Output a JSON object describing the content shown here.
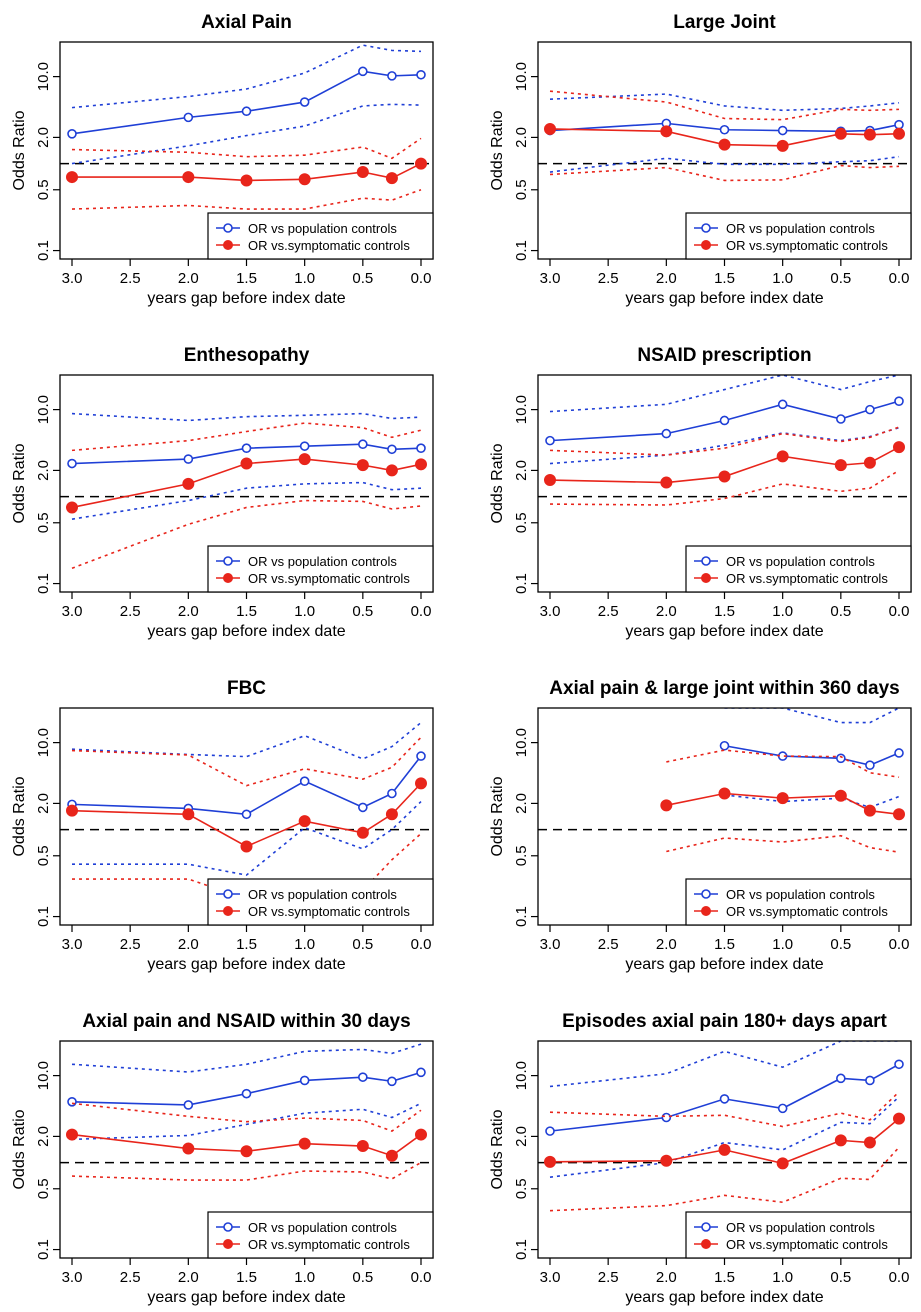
{
  "figure": {
    "xlabel": "years gap before index date",
    "ylabel": "Odds Ratio",
    "x_ticks": [
      3.0,
      2.5,
      2.0,
      1.5,
      1.0,
      0.5,
      0.0
    ],
    "x_tick_labels": [
      "3.0",
      "2.5",
      "2.0",
      "1.5",
      "1.0",
      "0.5",
      "0.0"
    ],
    "y_ticks": [
      0.1,
      0.5,
      2.0,
      10.0
    ],
    "y_tick_labels": [
      "0.1",
      "0.5",
      "2.0",
      "10.0"
    ],
    "legend": {
      "pop_label": "OR vs population controls",
      "sym_label": "OR vs.symptomatic controls"
    },
    "colors": {
      "pop": "#1f3fd6",
      "sym": "#e8251b",
      "reference": "#000000"
    }
  },
  "chart_data": [
    {
      "type": "line",
      "title": "Axial Pain",
      "xlabel": "years gap before index date",
      "ylabel": "Odds Ratio",
      "y_scale": "log",
      "xlim": [
        3.0,
        0.0
      ],
      "ylim": [
        0.08,
        25
      ],
      "reference_line": 1.0,
      "legend_position": "bottom-right",
      "series": [
        {
          "name": "OR vs population controls",
          "marker": "open-circle",
          "x": [
            3.0,
            2.0,
            1.5,
            1.0,
            0.5,
            0.25,
            0.0
          ],
          "y": [
            2.2,
            3.4,
            4.0,
            5.1,
            11.5,
            10.2,
            10.5
          ],
          "lower": [
            1.0,
            1.6,
            2.1,
            2.7,
            4.6,
            4.8,
            4.7
          ],
          "upper": [
            4.4,
            5.9,
            7.2,
            11.0,
            23.0,
            20.0,
            19.5
          ]
        },
        {
          "name": "OR vs.symptomatic controls",
          "marker": "filled-circle",
          "x": [
            3.0,
            2.0,
            1.5,
            1.0,
            0.5,
            0.25,
            0.0
          ],
          "y": [
            0.7,
            0.7,
            0.64,
            0.66,
            0.8,
            0.68,
            1.0
          ],
          "lower": [
            0.3,
            0.33,
            0.3,
            0.3,
            0.4,
            0.38,
            0.5
          ],
          "upper": [
            1.45,
            1.35,
            1.2,
            1.25,
            1.55,
            1.15,
            1.95
          ]
        }
      ]
    },
    {
      "type": "line",
      "title": "Large Joint",
      "xlabel": "years gap before index date",
      "ylabel": "Odds Ratio",
      "y_scale": "log",
      "xlim": [
        3.0,
        0.0
      ],
      "ylim": [
        0.08,
        25
      ],
      "reference_line": 1.0,
      "legend_position": "bottom-right",
      "series": [
        {
          "name": "OR vs population controls",
          "marker": "open-circle",
          "x": [
            3.0,
            2.0,
            1.5,
            1.0,
            0.5,
            0.25,
            0.0
          ],
          "y": [
            2.4,
            2.9,
            2.45,
            2.4,
            2.35,
            2.4,
            2.8
          ],
          "lower": [
            0.8,
            1.15,
            0.98,
            0.98,
            1.05,
            1.08,
            1.2
          ],
          "upper": [
            5.5,
            6.3,
            4.6,
            4.1,
            4.3,
            4.6,
            5.0
          ]
        },
        {
          "name": "OR vs.symptomatic controls",
          "marker": "filled-circle",
          "x": [
            3.0,
            2.0,
            1.5,
            1.0,
            0.5,
            0.25,
            0.0
          ],
          "y": [
            2.5,
            2.35,
            1.65,
            1.6,
            2.2,
            2.15,
            2.2
          ],
          "lower": [
            0.75,
            0.9,
            0.64,
            0.65,
            0.95,
            0.9,
            0.93
          ],
          "upper": [
            6.8,
            5.1,
            3.3,
            3.2,
            4.2,
            4.1,
            4.2
          ]
        }
      ]
    },
    {
      "type": "line",
      "title": "Enthesopathy",
      "xlabel": "years gap before index date",
      "ylabel": "Odds Ratio",
      "y_scale": "log",
      "xlim": [
        3.0,
        0.0
      ],
      "ylim": [
        0.08,
        25
      ],
      "reference_line": 1.0,
      "legend_position": "bottom-right",
      "series": [
        {
          "name": "OR vs population controls",
          "marker": "open-circle",
          "x": [
            3.0,
            2.0,
            1.5,
            1.0,
            0.5,
            0.25,
            0.0
          ],
          "y": [
            2.4,
            2.7,
            3.6,
            3.8,
            4.0,
            3.5,
            3.6
          ],
          "lower": [
            0.55,
            0.9,
            1.25,
            1.4,
            1.45,
            1.2,
            1.25
          ],
          "upper": [
            9.0,
            7.5,
            8.3,
            8.6,
            9.0,
            7.9,
            8.2
          ]
        },
        {
          "name": "OR vs.symptomatic controls",
          "marker": "filled-circle",
          "x": [
            3.0,
            2.0,
            1.5,
            1.0,
            0.5,
            0.25,
            0.0
          ],
          "y": [
            0.75,
            1.4,
            2.4,
            2.7,
            2.3,
            2.0,
            2.35
          ],
          "lower": [
            0.15,
            0.48,
            0.75,
            0.9,
            0.88,
            0.72,
            0.78
          ],
          "upper": [
            3.4,
            4.4,
            5.6,
            7.0,
            6.2,
            4.8,
            5.8
          ]
        }
      ]
    },
    {
      "type": "line",
      "title": "NSAID prescription",
      "xlabel": "years gap before index date",
      "ylabel": "Odds Ratio",
      "y_scale": "log",
      "xlim": [
        3.0,
        0.0
      ],
      "ylim": [
        0.08,
        25
      ],
      "reference_line": 1.0,
      "legend_position": "bottom-right",
      "series": [
        {
          "name": "OR vs population controls",
          "marker": "open-circle",
          "x": [
            3.0,
            2.0,
            1.5,
            1.0,
            0.5,
            0.25,
            0.0
          ],
          "y": [
            4.4,
            5.3,
            7.5,
            11.5,
            7.8,
            10.0,
            12.5
          ],
          "lower": [
            2.4,
            3.0,
            3.9,
            5.4,
            4.4,
            4.9,
            6.2
          ],
          "upper": [
            9.5,
            11.5,
            17.0,
            25.0,
            17.0,
            21.0,
            25.0
          ]
        },
        {
          "name": "OR vs.symptomatic controls",
          "marker": "filled-circle",
          "x": [
            3.0,
            2.0,
            1.5,
            1.0,
            0.5,
            0.25,
            0.0
          ],
          "y": [
            1.55,
            1.45,
            1.7,
            2.9,
            2.3,
            2.45,
            3.7
          ],
          "lower": [
            0.82,
            0.8,
            0.95,
            1.4,
            1.15,
            1.25,
            2.0
          ],
          "upper": [
            3.4,
            3.0,
            3.6,
            5.3,
            4.3,
            4.8,
            6.3
          ]
        }
      ]
    },
    {
      "type": "line",
      "title": "FBC",
      "xlabel": "years gap before index date",
      "ylabel": "Odds Ratio",
      "y_scale": "log",
      "xlim": [
        3.0,
        0.0
      ],
      "ylim": [
        0.08,
        25
      ],
      "reference_line": 1.0,
      "legend_position": "bottom-right",
      "series": [
        {
          "name": "OR vs population controls",
          "marker": "open-circle",
          "x": [
            3.0,
            2.0,
            1.5,
            1.0,
            0.5,
            0.25,
            0.0
          ],
          "y": [
            1.95,
            1.75,
            1.5,
            3.6,
            1.8,
            2.6,
            7.0
          ],
          "lower": [
            0.4,
            0.4,
            0.3,
            1.05,
            0.6,
            1.0,
            2.1
          ],
          "upper": [
            8.4,
            7.3,
            6.9,
            12.0,
            6.5,
            9.0,
            17.0
          ]
        },
        {
          "name": "OR vs.symptomatic controls",
          "marker": "filled-circle",
          "x": [
            3.0,
            2.0,
            1.5,
            1.0,
            0.5,
            0.25,
            0.0
          ],
          "y": [
            1.65,
            1.5,
            0.64,
            1.25,
            0.92,
            1.5,
            3.4
          ],
          "lower": [
            0.27,
            0.27,
            0.16,
            0.18,
            0.2,
            0.45,
            0.9
          ],
          "upper": [
            8.1,
            7.2,
            3.2,
            5.0,
            3.8,
            5.2,
            11.5
          ]
        }
      ]
    },
    {
      "type": "line",
      "title": "Axial pain & large joint within 360 days",
      "xlabel": "years gap before index date",
      "ylabel": "Odds Ratio",
      "y_scale": "log",
      "xlim": [
        3.0,
        0.0
      ],
      "ylim": [
        0.08,
        25
      ],
      "reference_line": 1.0,
      "legend_position": "bottom-right",
      "series": [
        {
          "name": "OR vs population controls",
          "marker": "open-circle",
          "x": [
            1.5,
            1.0,
            0.5,
            0.25,
            0.0
          ],
          "y": [
            9.2,
            7.0,
            6.6,
            5.5,
            7.6
          ],
          "lower": [
            2.5,
            2.1,
            2.3,
            1.8,
            2.4
          ],
          "upper": [
            25.0,
            25.0,
            17.0,
            17.0,
            25.0
          ]
        },
        {
          "name": "OR vs.symptomatic controls",
          "marker": "filled-circle",
          "x": [
            2.0,
            1.5,
            1.0,
            0.5,
            0.25,
            0.0
          ],
          "y": [
            1.9,
            2.6,
            2.3,
            2.45,
            1.65,
            1.5
          ],
          "lower": [
            0.56,
            0.8,
            0.72,
            0.85,
            0.62,
            0.55
          ],
          "upper": [
            6.0,
            8.2,
            7.0,
            6.9,
            4.5,
            4.0
          ]
        }
      ]
    },
    {
      "type": "line",
      "title": "Axial pain and NSAID within 30 days",
      "xlabel": "years gap before index date",
      "ylabel": "Odds Ratio",
      "y_scale": "log",
      "xlim": [
        3.0,
        0.0
      ],
      "ylim": [
        0.08,
        25
      ],
      "reference_line": 1.0,
      "legend_position": "bottom-right",
      "series": [
        {
          "name": "OR vs population controls",
          "marker": "open-circle",
          "x": [
            3.0,
            2.0,
            1.5,
            1.0,
            0.5,
            0.25,
            0.0
          ],
          "y": [
            5.0,
            4.6,
            6.2,
            8.8,
            9.6,
            8.6,
            10.9
          ],
          "lower": [
            1.85,
            2.05,
            2.75,
            3.7,
            4.1,
            3.3,
            4.8
          ],
          "upper": [
            13.5,
            11.0,
            13.5,
            19.0,
            20.0,
            18.0,
            23.0
          ]
        },
        {
          "name": "OR vs.symptomatic controls",
          "marker": "filled-circle",
          "x": [
            3.0,
            2.0,
            1.5,
            1.0,
            0.5,
            0.25,
            0.0
          ],
          "y": [
            2.1,
            1.45,
            1.35,
            1.65,
            1.55,
            1.2,
            2.1
          ],
          "lower": [
            0.7,
            0.63,
            0.63,
            0.8,
            0.78,
            0.65,
            1.0
          ],
          "upper": [
            4.8,
            3.4,
            2.95,
            3.25,
            3.05,
            2.3,
            4.0
          ]
        }
      ]
    },
    {
      "type": "line",
      "title": "Episodes axial pain 180+ days apart",
      "xlabel": "years gap before index date",
      "ylabel": "Odds Ratio",
      "y_scale": "log",
      "xlim": [
        3.0,
        0.0
      ],
      "ylim": [
        0.08,
        25
      ],
      "reference_line": 1.0,
      "legend_position": "bottom-right",
      "series": [
        {
          "name": "OR vs population controls",
          "marker": "open-circle",
          "x": [
            3.0,
            2.0,
            1.5,
            1.0,
            0.5,
            0.25,
            0.0
          ],
          "y": [
            2.3,
            3.3,
            5.4,
            4.2,
            9.3,
            8.8,
            13.5
          ],
          "lower": [
            0.68,
            1.0,
            1.7,
            1.4,
            2.9,
            2.8,
            5.7
          ],
          "upper": [
            7.5,
            10.5,
            19.0,
            12.5,
            25.0,
            25.0,
            25.0
          ]
        },
        {
          "name": "OR vs.symptomatic controls",
          "marker": "filled-circle",
          "x": [
            3.0,
            2.0,
            1.5,
            1.0,
            0.5,
            0.25,
            0.0
          ],
          "y": [
            1.02,
            1.05,
            1.4,
            0.98,
            1.8,
            1.7,
            3.2
          ],
          "lower": [
            0.28,
            0.32,
            0.42,
            0.35,
            0.66,
            0.64,
            1.5
          ],
          "upper": [
            3.8,
            3.4,
            3.5,
            2.6,
            3.7,
            3.1,
            6.5
          ]
        }
      ]
    }
  ]
}
